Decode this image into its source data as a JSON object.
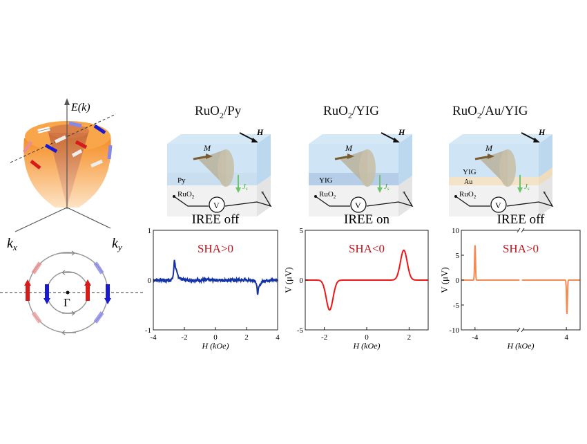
{
  "band": {
    "energy_label": "E(k)",
    "kx_label": "k",
    "kx_sub": "x",
    "ky_label": "k",
    "ky_sub": "y",
    "gamma_label": "Γ"
  },
  "devices": [
    {
      "title_a": "RuO",
      "title_sub": "2",
      "title_b": "/Py",
      "field": "H",
      "magnetization": "M",
      "layer_top": "Py",
      "layer_mid": "",
      "substrate": "RuO",
      "substrate_sub": "2",
      "current": "J",
      "current_sub": "s",
      "meter": "V"
    },
    {
      "title_a": "RuO",
      "title_sub": "2",
      "title_b": "/YIG",
      "field": "H",
      "magnetization": "M",
      "layer_top": "YIG",
      "layer_mid": "",
      "substrate": "RuO",
      "substrate_sub": "2",
      "current": "J",
      "current_sub": "s",
      "meter": "V"
    },
    {
      "title_a": "RuO",
      "title_sub": "2",
      "title_b": "/Au/YIG",
      "field": "H",
      "magnetization": "M",
      "layer_top": "YIG",
      "layer_mid": "Au",
      "substrate": "RuO",
      "substrate_sub": "2",
      "current": "J",
      "current_sub": "s",
      "meter": "V"
    }
  ],
  "colors": {
    "chart1": "#1533a8",
    "chart2": "#f01414",
    "chart3": "#f58a50",
    "annotation": "#c0141c",
    "orange": "#f7942f",
    "red_arrow": "#d71a1a",
    "blue_arrow": "#1a1ad0",
    "green": "#3aa83a"
  },
  "chart_data": [
    {
      "type": "line",
      "title": "IREE off",
      "annotation": "SHA>0",
      "xlabel": "H (kOe)",
      "ylabel": "",
      "xlim": [
        -4,
        4
      ],
      "ylim": [
        -1,
        1
      ],
      "xticks": [
        "-4",
        "-2",
        "0",
        "2",
        "4"
      ],
      "xtick_values": [
        -4,
        -2,
        0,
        2,
        4
      ],
      "yticks": [
        "1",
        "0",
        "-1"
      ],
      "ytick_values": [
        1,
        0,
        -1
      ],
      "baseline": 0,
      "noise": 0.03,
      "features": [
        {
          "x": -2.65,
          "y": 0.45,
          "width": 0.12
        },
        {
          "x": 2.7,
          "y": -0.3,
          "width": 0.12
        }
      ]
    },
    {
      "type": "line",
      "title": "IREE on",
      "annotation": "SHA<0",
      "xlabel": "H (kOe)",
      "ylabel": "V (μV)",
      "xlim": [
        -2.9,
        2.9
      ],
      "ylim": [
        -5,
        5
      ],
      "xticks": [
        "-2",
        "0",
        "2"
      ],
      "xtick_values": [
        -2,
        0,
        2
      ],
      "yticks": [
        "5",
        "0",
        "-5"
      ],
      "ytick_values": [
        5,
        0,
        -5
      ],
      "baseline": 0,
      "noise": 0,
      "features": [
        {
          "x": -1.75,
          "y": -3.0,
          "width": 0.16
        },
        {
          "x": 1.75,
          "y": 3.0,
          "width": 0.16
        }
      ]
    },
    {
      "type": "line",
      "title": "IREE off",
      "annotation": "SHA>0",
      "xlabel": "H (kOe)",
      "ylabel": "V (μV)",
      "xlim": [
        -5.2,
        5.2
      ],
      "axis_break": true,
      "ylim": [
        -10,
        10
      ],
      "xticks": [
        "-4",
        "4"
      ],
      "xtick_values": [
        -4,
        4
      ],
      "yticks": [
        "10",
        "5",
        "0",
        "-5",
        "-10"
      ],
      "ytick_values": [
        10,
        5,
        0,
        -5,
        -10
      ],
      "baseline": 0,
      "noise": 0,
      "features": [
        {
          "x": -4,
          "y": 7,
          "width": 0.04
        },
        {
          "x": 4.05,
          "y": -6.8,
          "width": 0.04
        }
      ]
    }
  ]
}
